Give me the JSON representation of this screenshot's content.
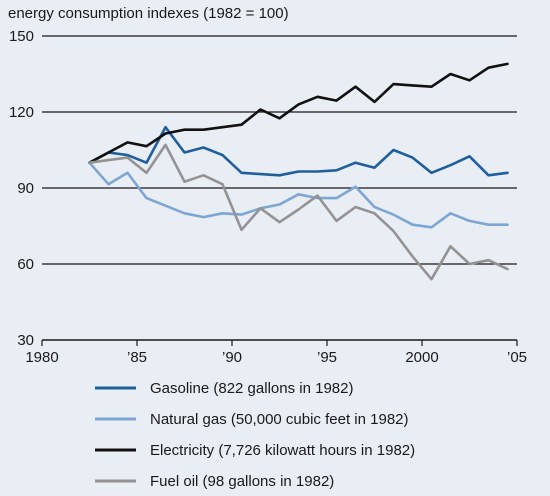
{
  "chart_data": {
    "type": "line",
    "title": "energy consumption indexes (1982 = 100)",
    "xlabel": "",
    "ylabel": "",
    "xlim": [
      1980,
      2005
    ],
    "ylim": [
      30,
      150
    ],
    "y_ticks": [
      30,
      60,
      90,
      120,
      150
    ],
    "y_tick_labels": [
      "30",
      "60",
      "90",
      "120",
      "150"
    ],
    "x_ticks": [
      1980,
      1985,
      1990,
      1995,
      2000,
      2005
    ],
    "x_tick_labels": [
      "1980",
      "’85",
      "’90",
      "’95",
      "2000",
      "’05"
    ],
    "grid": "horizontal",
    "legend_position": "bottom",
    "x": [
      1982.5,
      1983.5,
      1984.5,
      1985.5,
      1986.5,
      1987.5,
      1988.5,
      1989.5,
      1990.5,
      1991.5,
      1992.5,
      1993.5,
      1994.5,
      1995.5,
      1996.5,
      1997.5,
      1998.5,
      1999.5,
      2000.5,
      2001.5,
      2002.5,
      2003.5,
      2004.5
    ],
    "series": [
      {
        "name": "Gasoline (822 gallons in 1982)",
        "color": "#1f5f9e",
        "values": [
          100,
          104,
          103,
          100,
          114,
          104,
          106,
          103,
          96,
          95.5,
          95,
          96.5,
          96.5,
          97,
          100,
          98,
          105,
          102,
          96,
          99,
          102.5,
          95,
          96
        ]
      },
      {
        "name": "Natural gas (50,000 cubic feet in 1982)",
        "color": "#7ea6d3",
        "values": [
          100,
          91.5,
          96,
          86,
          83,
          80,
          78.5,
          80,
          79.5,
          82,
          83.5,
          87.5,
          86,
          86,
          90.5,
          82.5,
          79.5,
          75.5,
          74.5,
          80,
          77,
          75.5,
          75.5
        ]
      },
      {
        "name": "Electricity (7,726 kilowatt hours in 1982)",
        "color": "#111111",
        "values": [
          100,
          104,
          108,
          106.5,
          111.5,
          113,
          113,
          114,
          115,
          121,
          117.5,
          123,
          126,
          124.5,
          130,
          124,
          131,
          130.5,
          130,
          135,
          132.5,
          137.5,
          139
        ]
      },
      {
        "name": "Fuel oil (98 gallons in 1982)",
        "color": "#939393",
        "values": [
          100,
          101,
          102,
          96,
          107,
          92.5,
          95,
          91.5,
          73.5,
          82,
          76.5,
          81.5,
          87,
          77,
          82.5,
          80,
          73,
          63,
          54,
          67,
          60,
          61.5,
          58
        ]
      }
    ]
  }
}
